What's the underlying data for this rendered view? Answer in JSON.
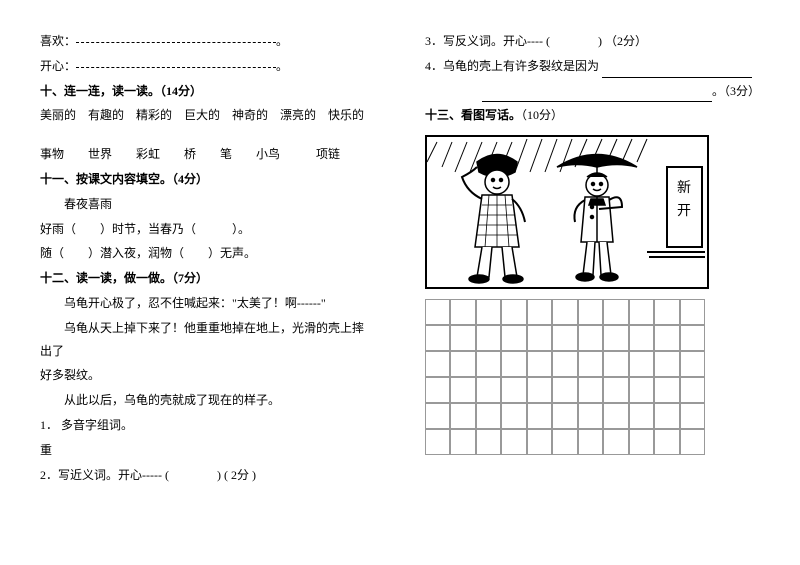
{
  "left": {
    "line1_label": "喜欢：",
    "line1_end": "。",
    "line2_label": "开心：",
    "line2_end": "。",
    "section10_title": "十、连一连，读一读。（14分）",
    "adj_words": "美丽的　有趣的　精彩的　巨大的　神奇的　漂亮的　快乐的",
    "noun_words": "事物　　世界　　彩虹　　桥　　笔　　小鸟　　　项链",
    "section11_title": "十一、按课文内容填空。（4分）",
    "poem_title": "春夜喜雨",
    "poem_line1": "好雨（　　）时节，当春乃（　　　）。",
    "poem_line2": "随（　　）潜入夜，润物（　　）无声。",
    "section12_title": "十二、读一读，做一做。（7分）",
    "story_p1": "乌龟开心极了，忍不住喊起来：\"太美了！啊------\"",
    "story_p2": "乌龟从天上掉下来了！他重重地掉在地上，光滑的壳上摔出了",
    "story_p3": "好多裂纹。",
    "story_p4": "从此以后，乌龟的壳就成了现在的样子。",
    "q1_label": "1．",
    "q1_text": "多音字组词。",
    "q1_char": "重",
    "q2_label": "2．写近义词。开心----- (　　　　) ( 2分 )"
  },
  "right": {
    "q3_label": "3．写反义词。开心---- (　　　　) （2分）",
    "q4_label": "4．乌龟的壳上有许多裂纹是因为 ",
    "q4_end": "。（3分）",
    "section13_title": "十三、看图写话。",
    "section13_points": "（10分）",
    "sign_text": "新\n开"
  },
  "style": {
    "page_bg": "#ffffff",
    "text_color": "#000000",
    "font_size": 12,
    "grid_cols": 11,
    "grid_rows": 6,
    "grid_cell_height": 26,
    "grid_border": "#999999",
    "figure_w": 280,
    "figure_h": 150
  }
}
